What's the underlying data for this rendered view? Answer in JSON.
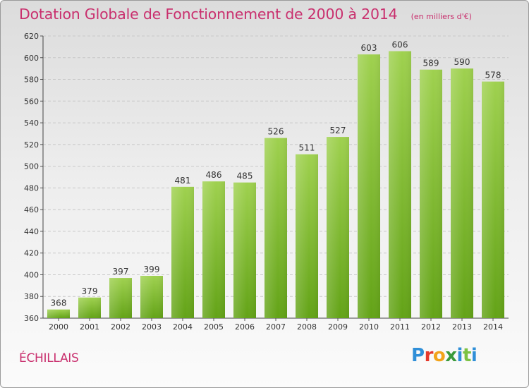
{
  "header": {
    "title": "Dotation Globale de Fonctionnement de 2000 à 2014",
    "unit": "(en milliers d'€)"
  },
  "commune": "ÉCHILLAIS",
  "logo": {
    "letters": [
      "P",
      "r",
      "o",
      "x",
      "i",
      "t",
      "i"
    ],
    "colors": [
      "#2f8fd8",
      "#e5392c",
      "#f2a31a",
      "#3a9a3a",
      "#2f8fd8",
      "#7cc242",
      "#2f8fd8"
    ]
  },
  "colors": {
    "bar_light": "#9fd14f",
    "bar_dark": "#63a317",
    "grid": "#c8c8c8",
    "text": "#333333",
    "accent": "#c9306e"
  },
  "chart_data": {
    "type": "bar",
    "title": "Dotation Globale de Fonctionnement de 2000 à 2014",
    "categories": [
      "2000",
      "2001",
      "2002",
      "2003",
      "2004",
      "2005",
      "2006",
      "2007",
      "2008",
      "2009",
      "2010",
      "2011",
      "2012",
      "2013",
      "2014"
    ],
    "values": [
      368,
      379,
      397,
      399,
      481,
      486,
      485,
      526,
      511,
      527,
      603,
      606,
      589,
      590,
      578
    ],
    "yticks": [
      360,
      380,
      400,
      420,
      440,
      460,
      480,
      500,
      520,
      540,
      560,
      580,
      600,
      620
    ],
    "ylim": [
      360,
      620
    ],
    "grid": true,
    "xlabel": "",
    "ylabel": ""
  }
}
